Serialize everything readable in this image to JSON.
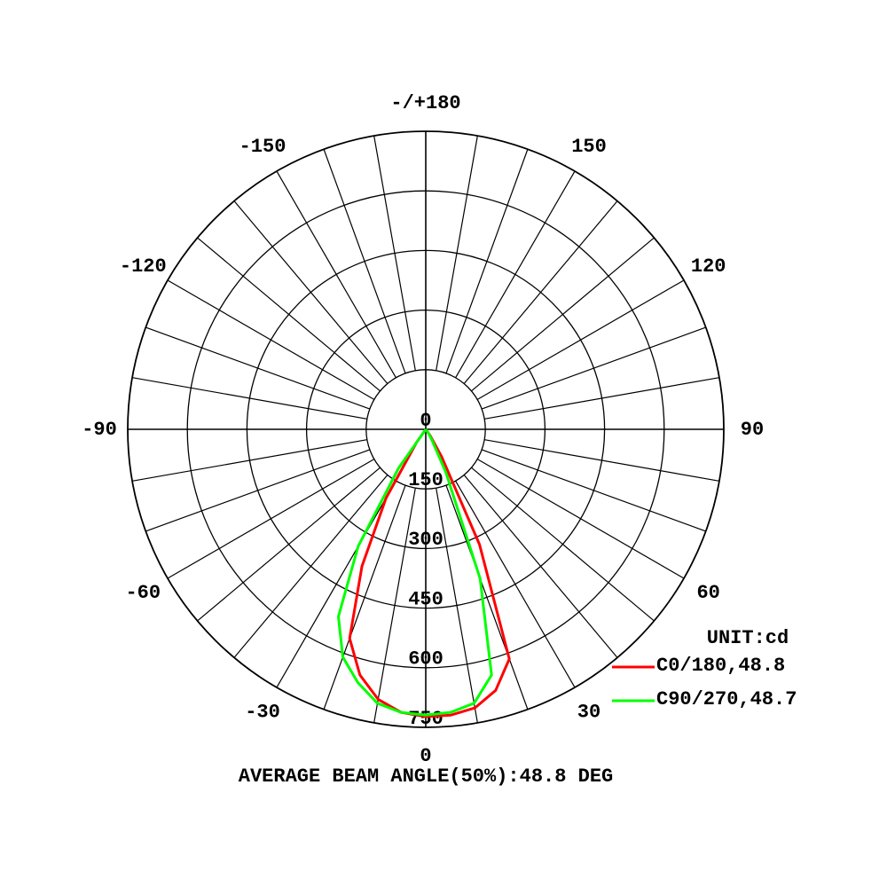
{
  "chart_data": {
    "type": "polar",
    "angles": [
      -40,
      -35,
      -30,
      -25,
      -20,
      -15,
      -10,
      -5,
      0,
      5,
      10,
      15,
      20,
      25,
      30,
      35,
      40
    ],
    "series": [
      {
        "name": "C0/180,48.8",
        "color": "#ff0000",
        "values": [
          0,
          40,
          200,
          380,
          560,
          640,
          690,
          715,
          723,
          722,
          712,
          680,
          615,
          320,
          80,
          20,
          0
        ]
      },
      {
        "name": "C90/270,48.7",
        "color": "#00ff00",
        "values": [
          0,
          120,
          340,
          520,
          610,
          660,
          700,
          715,
          719,
          715,
          700,
          640,
          400,
          120,
          30,
          10,
          0
        ]
      }
    ],
    "rlim": [
      0,
      750
    ],
    "rticks": [
      0,
      150,
      300,
      450,
      600,
      750
    ],
    "angle_ticks": [
      -150,
      -120,
      -90,
      -60,
      -30,
      0,
      30,
      60,
      90,
      120,
      150,
      {
        "value": 180,
        "label": "-/+180"
      }
    ],
    "unit_label": "UNIT:cd",
    "footer": "AVERAGE BEAM ANGLE(50%):48.8 DEG"
  }
}
